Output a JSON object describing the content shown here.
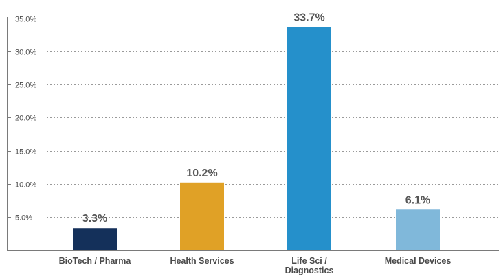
{
  "chart_data": {
    "type": "bar",
    "categories": [
      "BioTech / Pharma",
      "Health Services",
      "Life Sci / Diagnostics",
      "Medical Devices"
    ],
    "category_lines": [
      [
        "BioTech / Pharma"
      ],
      [
        "Health Services"
      ],
      [
        "Life Sci /",
        "Diagnostics"
      ],
      [
        "Medical Devices"
      ]
    ],
    "values": [
      3.3,
      10.2,
      33.7,
      6.1
    ],
    "data_labels": [
      "3.3%",
      "10.2%",
      "33.7%",
      "6.1%"
    ],
    "colors": [
      "#14305a",
      "#e0a126",
      "#2590cb",
      "#80b8da"
    ],
    "yticks": [
      5,
      10,
      15,
      20,
      25,
      30,
      35
    ],
    "ytick_labels": [
      "5.0%",
      "10.0%",
      "15.0%",
      "20.0%",
      "25.0%",
      "30.0%",
      "35.0%"
    ],
    "ylim": [
      0,
      35
    ],
    "grid": true,
    "title": "",
    "xlabel": "",
    "ylabel": ""
  }
}
